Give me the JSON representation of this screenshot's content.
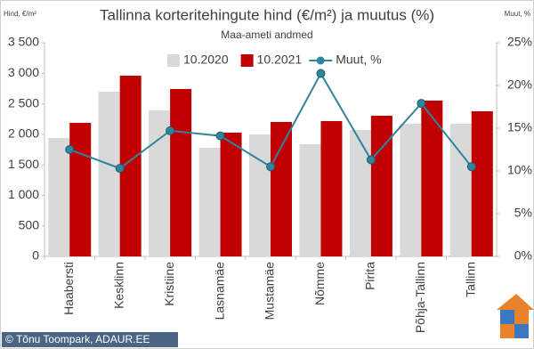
{
  "chart_data": {
    "type": "bar-line",
    "title": "Tallinna korteritehingute hind (€/m²) ja muutus (%)",
    "subtitle": "Maa-ameti andmed",
    "y_label": "Hind, €/m²",
    "y2_label": "Muut, %",
    "footer": "© Tõnu Toompark, ADAUR.EE",
    "categories": [
      "Haabersti",
      "Kesklinn",
      "Kristiine",
      "Lasnamäe",
      "Mustamäe",
      "Nõmme",
      "Pirita",
      "Põhja-Tallinn",
      "Tallinn"
    ],
    "series": [
      {
        "name": "10.2020",
        "color": "#d9d9d9",
        "type": "bar",
        "values": [
          1940,
          2698,
          2392,
          1779,
          1998,
          1838,
          2071,
          2173,
          2173
        ]
      },
      {
        "name": "10.2021",
        "color": "#c00000",
        "type": "bar",
        "values": [
          2188,
          2960,
          2742,
          2027,
          2202,
          2217,
          2304,
          2552,
          2377
        ]
      },
      {
        "name": "Muut, %",
        "color": "#31849b",
        "type": "line",
        "axis": "y2",
        "values": [
          12.5,
          10.3,
          14.7,
          14.1,
          10.5,
          21.4,
          11.3,
          17.9,
          10.5
        ]
      }
    ],
    "ylim": [
      0,
      3500
    ],
    "yticks": [
      0,
      500,
      {
        "value": 1000,
        "label": "1 000"
      },
      {
        "value": 1500,
        "label": "1 500"
      },
      {
        "value": 2000,
        "label": "2 000"
      },
      {
        "value": 2500,
        "label": "2 500"
      },
      {
        "value": 3000,
        "label": "3 000"
      },
      {
        "value": 3500,
        "label": "3 500"
      }
    ],
    "y2lim": [
      0,
      25
    ],
    "y2ticks": [
      {
        "value": 0,
        "label": "0%"
      },
      {
        "value": 5,
        "label": "5%"
      },
      {
        "value": 10,
        "label": "10%"
      },
      {
        "value": 15,
        "label": "15%"
      },
      {
        "value": 20,
        "label": "20%"
      },
      {
        "value": 25,
        "label": "25%"
      }
    ],
    "grid": false,
    "legend": "top"
  }
}
